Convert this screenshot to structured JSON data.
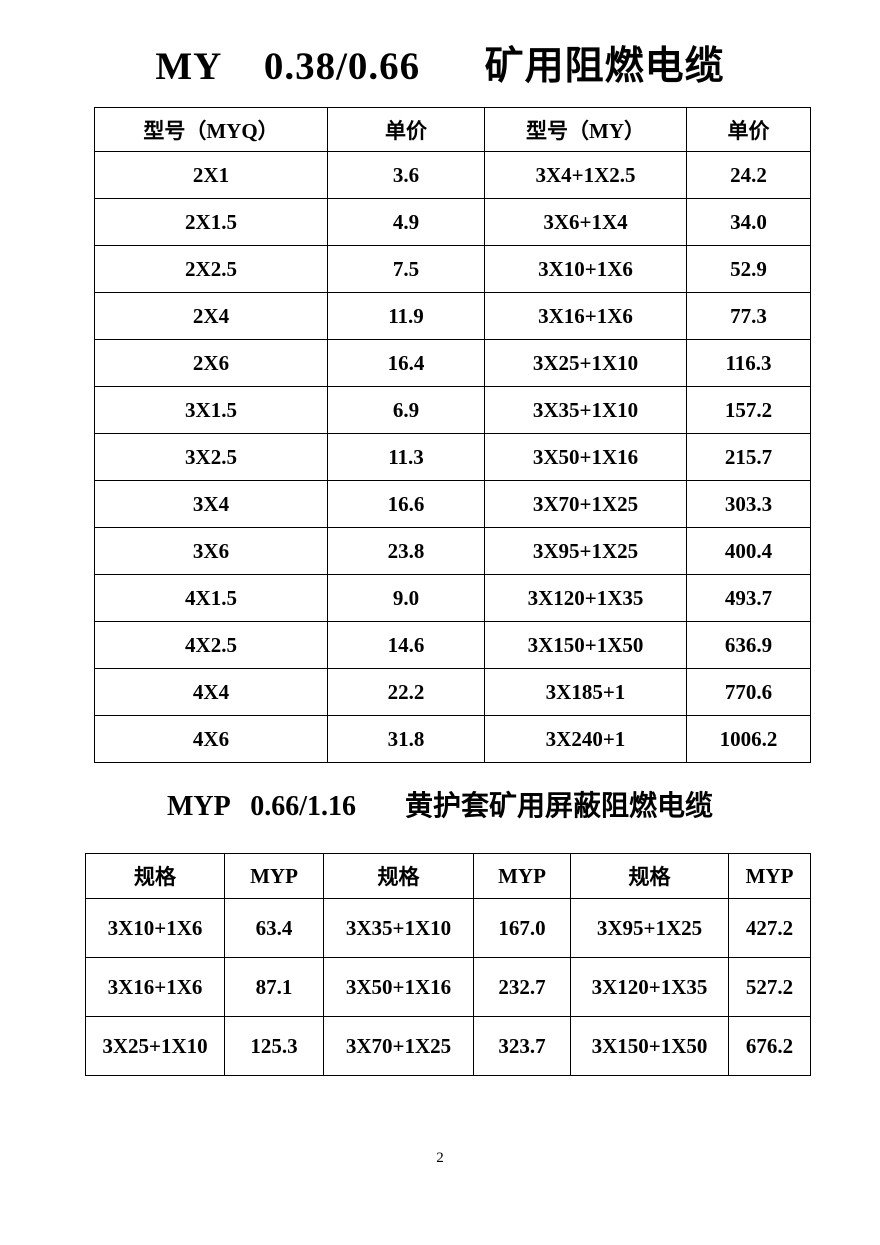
{
  "page": {
    "number": "2"
  },
  "section_my": {
    "title": "MY    0.38/0.66      矿用阻燃电缆",
    "table": {
      "headers": [
        "型号（MYQ）",
        "单价",
        "型号（MY）",
        "单价"
      ],
      "rows": [
        [
          "2X1",
          "3.6",
          "3X4+1X2.5",
          "24.2"
        ],
        [
          "2X1.5",
          "4.9",
          "3X6+1X4",
          "34.0"
        ],
        [
          "2X2.5",
          "7.5",
          "3X10+1X6",
          "52.9"
        ],
        [
          "2X4",
          "11.9",
          "3X16+1X6",
          "77.3"
        ],
        [
          "2X6",
          "16.4",
          "3X25+1X10",
          "116.3"
        ],
        [
          "3X1.5",
          "6.9",
          "3X35+1X10",
          "157.2"
        ],
        [
          "3X2.5",
          "11.3",
          "3X50+1X16",
          "215.7"
        ],
        [
          "3X4",
          "16.6",
          "3X70+1X25",
          "303.3"
        ],
        [
          "3X6",
          "23.8",
          "3X95+1X25",
          "400.4"
        ],
        [
          "4X1.5",
          "9.0",
          "3X120+1X35",
          "493.7"
        ],
        [
          "4X2.5",
          "14.6",
          "3X150+1X50",
          "636.9"
        ],
        [
          "4X4",
          "22.2",
          "3X185+1",
          "770.6"
        ],
        [
          "4X6",
          "31.8",
          "3X240+1",
          "1006.2"
        ]
      ]
    }
  },
  "section_myp": {
    "title": "MYP   0.66/1.16       黄护套矿用屏蔽阻燃电缆",
    "table": {
      "headers": [
        "规格",
        "MYP",
        "规格",
        "MYP",
        "规格",
        "MYP"
      ],
      "rows": [
        [
          "3X10+1X6",
          "63.4",
          "3X35+1X10",
          "167.0",
          "3X95+1X25",
          "427.2"
        ],
        [
          "3X16+1X6",
          "87.1",
          "3X50+1X16",
          "232.7",
          "3X120+1X35",
          "527.2"
        ],
        [
          "3X25+1X10",
          "125.3",
          "3X70+1X25",
          "323.7",
          "3X150+1X50",
          "676.2"
        ]
      ]
    }
  }
}
